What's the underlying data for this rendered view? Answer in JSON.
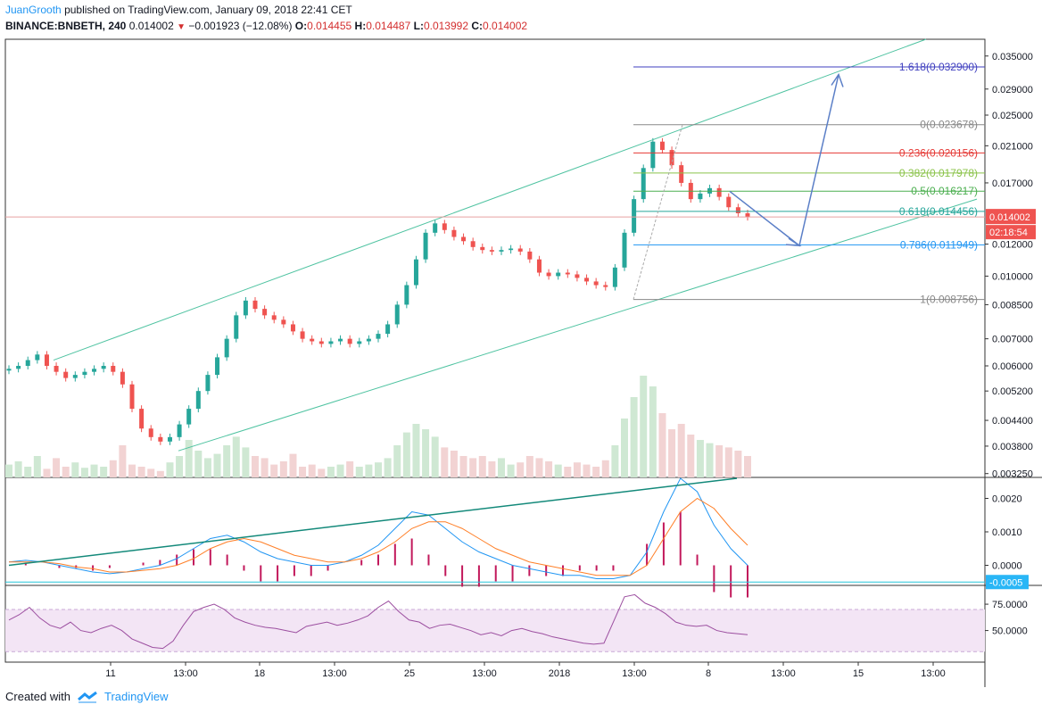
{
  "header": {
    "author": "JuanGrooth",
    "published_text": "published on TradingView.com, January 09, 2018 22:41 CET",
    "symbol": "BINANCE:BNBETH, 240",
    "last": "0.014002",
    "change": "−0.001923 (−12.08%)",
    "open_label": "O:",
    "open": "0.014455",
    "high_label": "H:",
    "high": "0.014487",
    "low_label": "L:",
    "low": "0.013992",
    "close_label": "C:",
    "close": "0.014002"
  },
  "footer": {
    "created_with": "Created with",
    "brand": "TradingView"
  },
  "colors": {
    "up": "#26a69a",
    "down": "#ef5350",
    "channel": "#4fc3a1",
    "arrow": "#5b7fc7",
    "macd": "#2196f3",
    "signal": "#ff7f27",
    "hist_neg": "#c2185b",
    "rsi": "#9c4fa0",
    "rsi_band": "#f3e5f5"
  },
  "chart_data": [
    {
      "type": "candlestick",
      "scale": "log",
      "price_axis_labels": [
        "0.035000",
        "0.029000",
        "0.025000",
        "0.021000",
        "0.017000",
        "0.012000",
        "0.010000",
        "0.008500",
        "0.007000",
        "0.006000",
        "0.005200",
        "0.004400",
        "0.003800",
        "0.003250"
      ],
      "price_axis_values": [
        0.035,
        0.029,
        0.025,
        0.021,
        0.017,
        0.012,
        0.01,
        0.0085,
        0.007,
        0.006,
        0.0052,
        0.0044,
        0.0038,
        0.00325
      ],
      "last_price_label": "0.014002",
      "countdown_label": "02:18:54",
      "time_labels": [
        "11",
        "13:00",
        "18",
        "13:00",
        "25",
        "13:00",
        "2018",
        "13:00",
        "8",
        "13:00",
        "15",
        "13:00"
      ],
      "close_path": [
        0.0059,
        0.006,
        0.0062,
        0.0064,
        0.006,
        0.0058,
        0.0056,
        0.0057,
        0.0058,
        0.0059,
        0.006,
        0.0058,
        0.0054,
        0.0047,
        0.0042,
        0.004,
        0.0039,
        0.004,
        0.0043,
        0.0047,
        0.0052,
        0.0057,
        0.0063,
        0.007,
        0.008,
        0.0087,
        0.0083,
        0.008,
        0.0078,
        0.0076,
        0.0073,
        0.007,
        0.0069,
        0.0068,
        0.0069,
        0.007,
        0.0068,
        0.0069,
        0.007,
        0.0072,
        0.0076,
        0.0085,
        0.0095,
        0.011,
        0.0128,
        0.0135,
        0.013,
        0.0125,
        0.0122,
        0.0118,
        0.0116,
        0.0115,
        0.0116,
        0.0117,
        0.0115,
        0.011,
        0.0102,
        0.01,
        0.0102,
        0.0101,
        0.0099,
        0.0097,
        0.0095,
        0.0094,
        0.0105,
        0.0128,
        0.0155,
        0.0185,
        0.0215,
        0.0205,
        0.0188,
        0.017,
        0.0155,
        0.016,
        0.0165,
        0.0157,
        0.0148,
        0.0143,
        0.014
      ],
      "volume_relative": [
        0.12,
        0.15,
        0.1,
        0.2,
        0.08,
        0.18,
        0.1,
        0.14,
        0.09,
        0.12,
        0.1,
        0.16,
        0.3,
        0.12,
        0.1,
        0.08,
        0.06,
        0.14,
        0.2,
        0.35,
        0.25,
        0.18,
        0.22,
        0.3,
        0.38,
        0.28,
        0.2,
        0.18,
        0.12,
        0.15,
        0.22,
        0.1,
        0.12,
        0.08,
        0.1,
        0.12,
        0.15,
        0.1,
        0.12,
        0.14,
        0.18,
        0.3,
        0.42,
        0.5,
        0.45,
        0.38,
        0.28,
        0.25,
        0.2,
        0.18,
        0.2,
        0.15,
        0.18,
        0.12,
        0.14,
        0.2,
        0.18,
        0.15,
        0.12,
        0.1,
        0.14,
        0.12,
        0.1,
        0.16,
        0.3,
        0.55,
        0.75,
        0.95,
        0.85,
        0.6,
        0.45,
        0.5,
        0.4,
        0.35,
        0.32,
        0.3,
        0.28,
        0.25,
        0.2
      ],
      "fibonacci": [
        {
          "label": "1.618(0.032900)",
          "value": 0.0329,
          "color": "#3f3fbf"
        },
        {
          "label": "0(0.023678)",
          "value": 0.023678,
          "color": "#888888"
        },
        {
          "label": "0.236(0.020156)",
          "value": 0.020156,
          "color": "#e53935"
        },
        {
          "label": "0.382(0.017978)",
          "value": 0.017978,
          "color": "#8bc34a"
        },
        {
          "label": "0.5(0.016217)",
          "value": 0.016217,
          "color": "#4caf50"
        },
        {
          "label": "0.618(0.014456)",
          "value": 0.014456,
          "color": "#26a69a"
        },
        {
          "label": "0.786(0.011949)",
          "value": 0.011949,
          "color": "#2196f3"
        },
        {
          "label": "1(0.008756)",
          "value": 0.008756,
          "color": "#888888"
        }
      ]
    },
    {
      "type": "line",
      "indicator": "MACD",
      "axis_labels": [
        "0.0020",
        "0.0010",
        "0.0000"
      ],
      "axis_values": [
        0.002,
        0.001,
        0.0
      ],
      "current_label": "-0.0005",
      "current_value": -0.0005,
      "macd": [
        0.0001,
        0.00015,
        0.0001,
        0.0,
        -0.0001,
        -0.0002,
        -0.00025,
        -0.0002,
        -0.0001,
        0.0,
        0.0002,
        0.0005,
        0.0008,
        0.0009,
        0.0007,
        0.0004,
        0.0002,
        0.0001,
        0.0,
        0.0,
        0.0001,
        0.0003,
        0.0006,
        0.0011,
        0.0016,
        0.0015,
        0.0011,
        0.0007,
        0.0004,
        0.0002,
        0.0,
        -0.0001,
        -0.0002,
        -0.0003,
        -0.0003,
        -0.0004,
        -0.0004,
        -0.0003,
        0.0004,
        0.0016,
        0.0026,
        0.0022,
        0.0012,
        0.0005,
        0.0
      ],
      "signal": [
        0.0001,
        0.0001,
        0.0001,
        5e-05,
        -5e-05,
        -0.0001,
        -0.0002,
        -0.0002,
        -0.00015,
        -0.0001,
        0.0,
        0.0002,
        0.0005,
        0.0007,
        0.0008,
        0.0007,
        0.0005,
        0.0003,
        0.0002,
        0.0001,
        0.0001,
        0.0002,
        0.0004,
        0.0007,
        0.0011,
        0.0013,
        0.0013,
        0.0011,
        0.0008,
        0.0005,
        0.0003,
        0.0001,
        0.0,
        -0.0001,
        -0.0002,
        -0.0003,
        -0.0003,
        -0.0003,
        0.0,
        0.0008,
        0.0016,
        0.002,
        0.0017,
        0.0011,
        0.0006
      ],
      "histogram_note": "histogram drawn from macd minus signal"
    },
    {
      "type": "line",
      "indicator": "RSI",
      "axis_labels": [
        "75.0000",
        "50.0000"
      ],
      "axis_values": [
        75,
        50
      ],
      "band": [
        30,
        70
      ],
      "values": [
        60,
        65,
        72,
        62,
        55,
        52,
        58,
        50,
        48,
        52,
        55,
        50,
        42,
        38,
        34,
        33,
        40,
        55,
        68,
        72,
        75,
        70,
        62,
        58,
        55,
        53,
        52,
        50,
        48,
        54,
        56,
        58,
        55,
        57,
        60,
        64,
        72,
        78,
        68,
        60,
        58,
        52,
        55,
        56,
        53,
        50,
        46,
        48,
        45,
        50,
        52,
        49,
        47,
        44,
        42,
        40,
        38,
        37,
        38,
        60,
        82,
        84,
        76,
        72,
        66,
        58,
        55,
        54,
        55,
        50,
        48,
        47,
        46
      ]
    }
  ]
}
